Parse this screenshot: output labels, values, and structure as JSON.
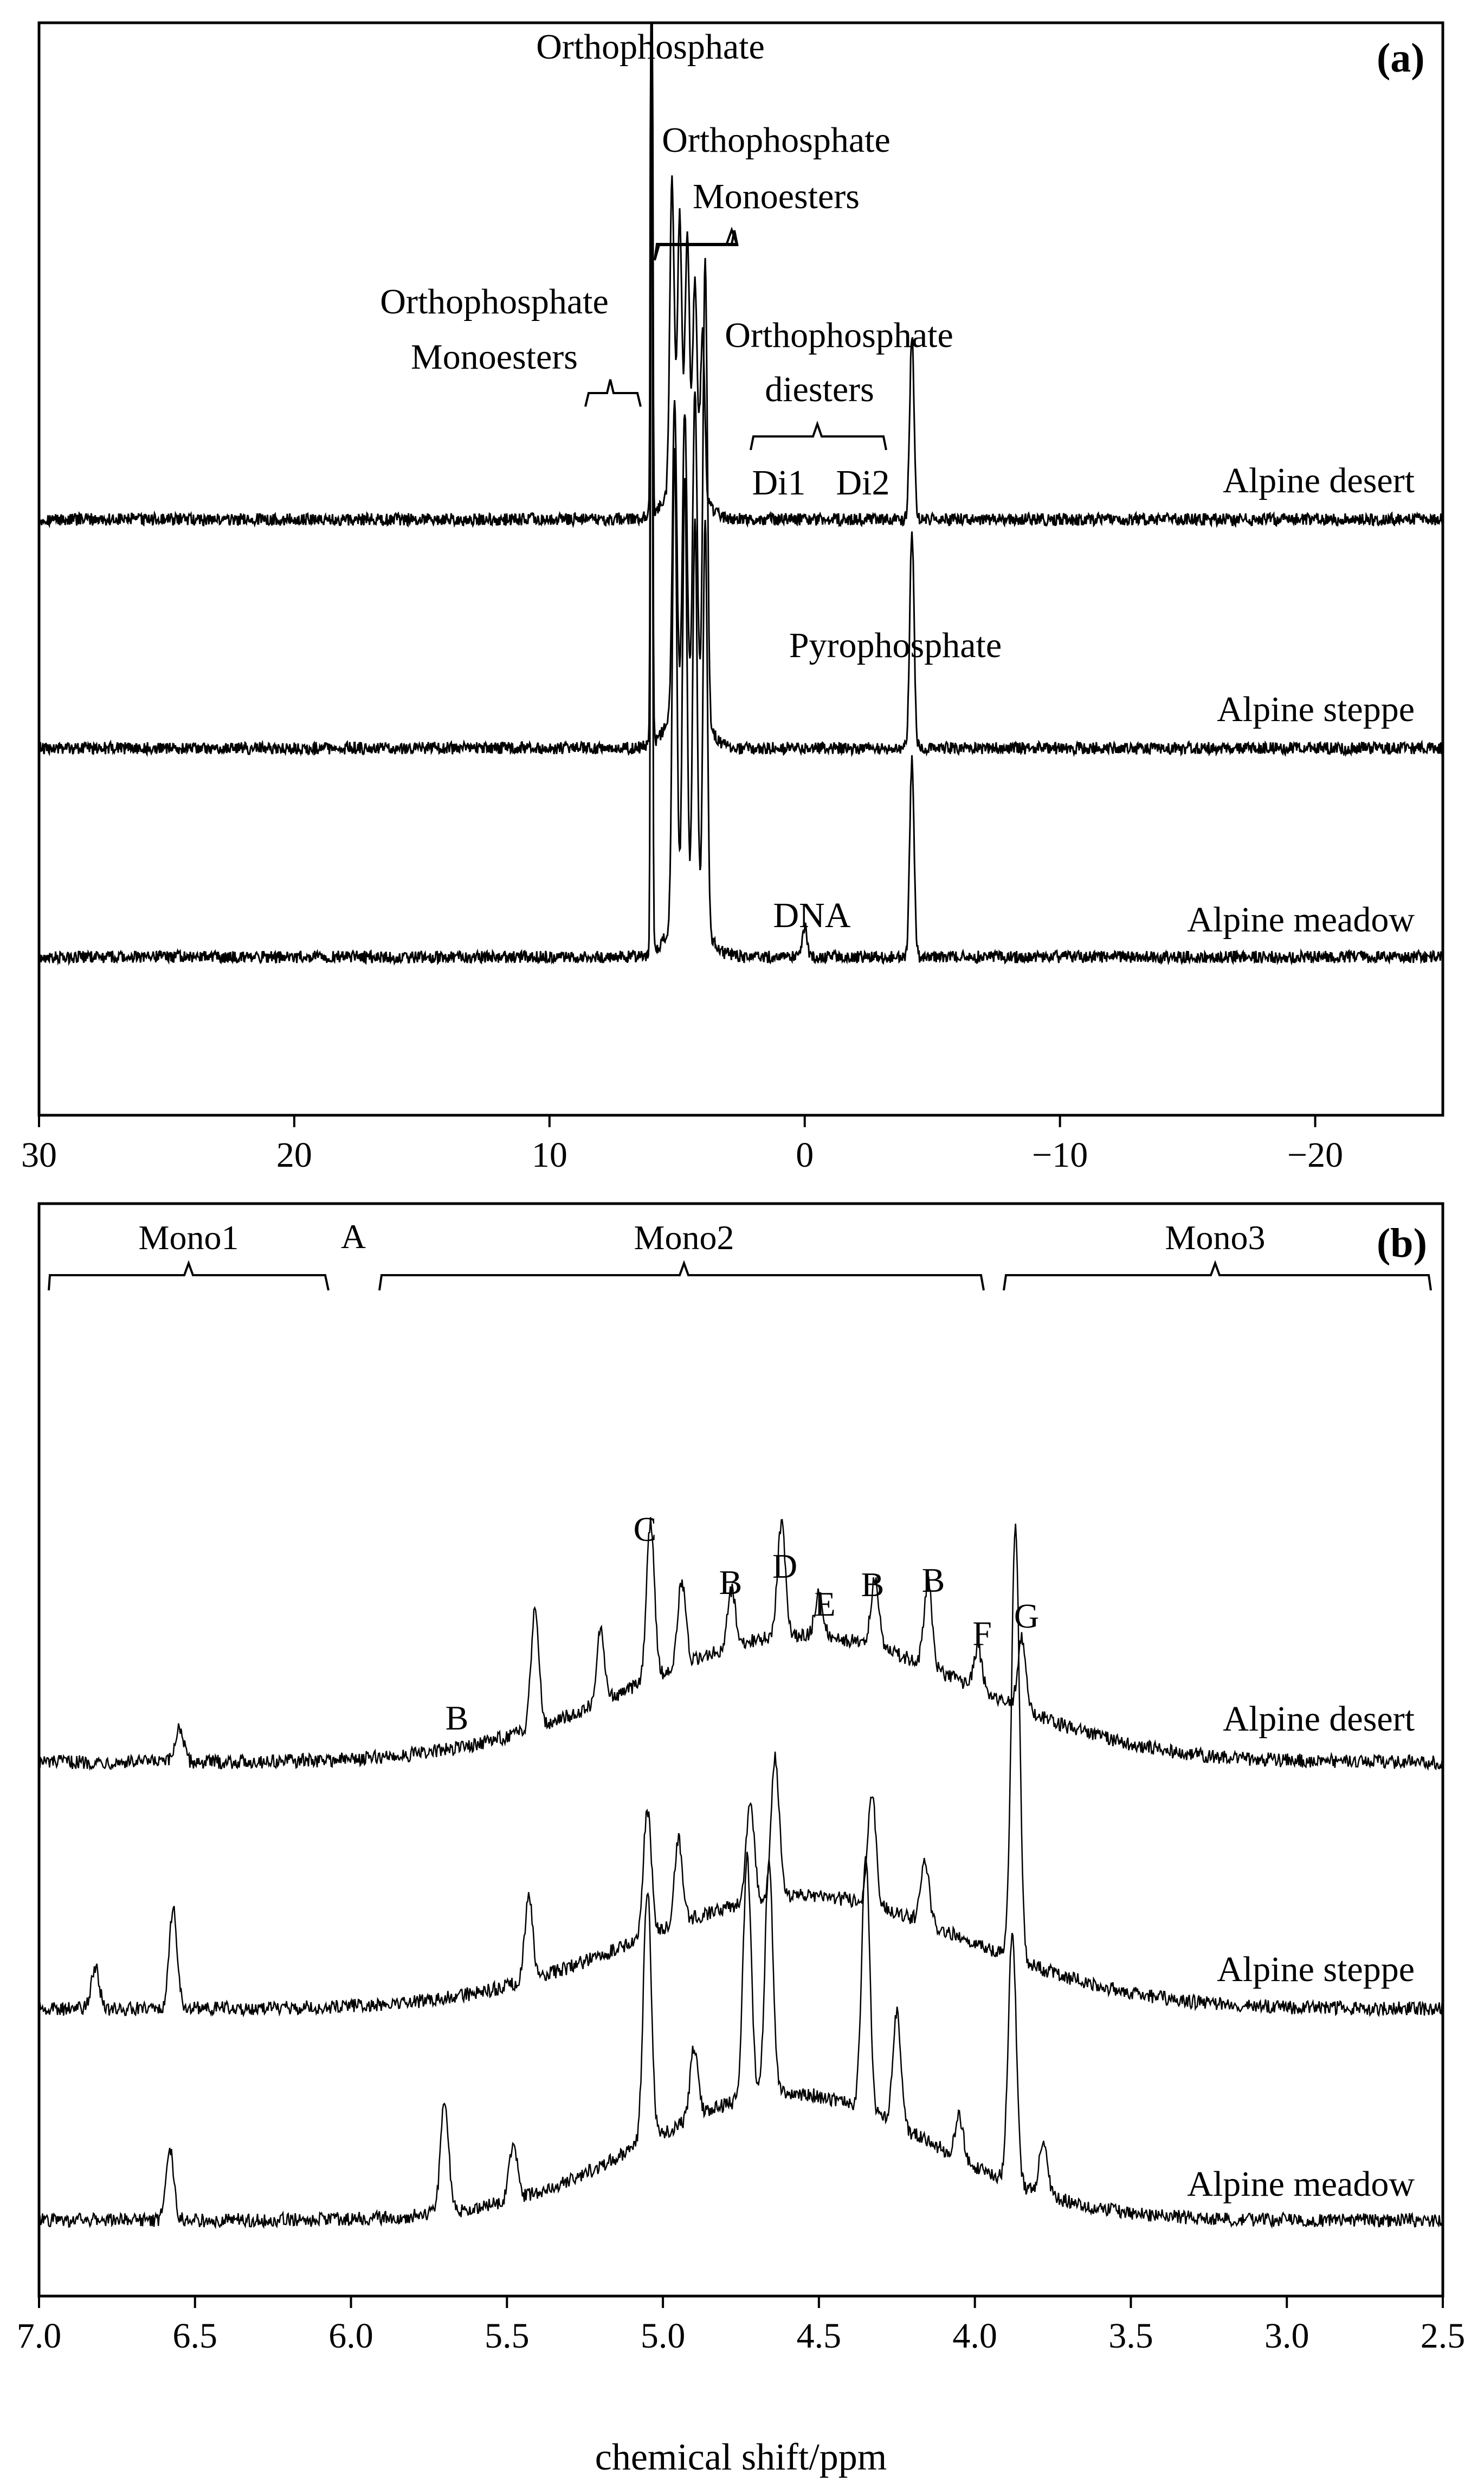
{
  "chart_data": [
    {
      "panel": "(a)",
      "type": "line",
      "xlim": [
        30,
        -25
      ],
      "x_ticks": [
        30,
        20,
        10,
        0,
        -10,
        -20
      ],
      "x_tick_labels": [
        "30",
        "20",
        "10",
        "0",
        "−10",
        "−20"
      ],
      "xlabel": "",
      "ylabel": "",
      "grid": false,
      "series": [
        {
          "name": "Alpine desert",
          "peaks": [
            {
              "x": 6.0,
              "h": 1.0
            },
            {
              "x": 5.2,
              "h": 0.3
            },
            {
              "x": 4.9,
              "h": 0.26
            },
            {
              "x": 4.6,
              "h": 0.24
            },
            {
              "x": 4.3,
              "h": 0.2
            },
            {
              "x": 4.0,
              "h": 0.16
            },
            {
              "x": -4.2,
              "h": 0.18
            }
          ]
        },
        {
          "name": "Alpine steppe",
          "peaks": [
            {
              "x": 6.0,
              "h": 1.0
            },
            {
              "x": 5.1,
              "h": 0.3
            },
            {
              "x": 4.7,
              "h": 0.28
            },
            {
              "x": 4.3,
              "h": 0.3
            },
            {
              "x": 3.9,
              "h": 0.45
            },
            {
              "x": -4.2,
              "h": 0.21
            }
          ]
        },
        {
          "name": "Alpine meadow",
          "peaks": [
            {
              "x": 6.0,
              "h": 1.0
            },
            {
              "x": 5.1,
              "h": 0.46
            },
            {
              "x": 4.7,
              "h": 0.42
            },
            {
              "x": 4.3,
              "h": 0.38
            },
            {
              "x": 3.9,
              "h": 0.4
            },
            {
              "x": 0.0,
              "h": 0.03
            },
            {
              "x": -4.2,
              "h": 0.19
            }
          ]
        }
      ],
      "annotations": {
        "orthophosphate": "Orthophosphate",
        "ortho_mono_right_1": "Orthophosphate",
        "ortho_mono_right_2": "Monoesters",
        "ortho_mono_left_1": "Orthophosphate",
        "ortho_mono_left_2": "Monoesters",
        "ortho_di_1": "Orthophosphate",
        "ortho_di_2": "diesters",
        "di1": "Di1",
        "di2": "Di2",
        "pyrophosphate": "Pyrophosphate",
        "dna": "DNA"
      }
    },
    {
      "panel": "(b)",
      "type": "line",
      "xlim": [
        7.0,
        2.5
      ],
      "x_ticks": [
        7.0,
        6.5,
        6.0,
        5.5,
        5.0,
        4.5,
        4.0,
        3.5,
        3.0,
        2.5
      ],
      "x_tick_labels": [
        "7.0",
        "6.5",
        "6.0",
        "5.5",
        "5.0",
        "4.5",
        "4.0",
        "3.5",
        "3.0",
        "2.5"
      ],
      "xlabel": "chemical shift/ppm",
      "ylabel": "",
      "grid": false,
      "series": [
        {
          "name": "Alpine desert",
          "peaks": [
            {
              "x": 6.55,
              "h": 0.05
            },
            {
              "x": 5.41,
              "h": 0.17
            },
            {
              "x": 5.2,
              "h": 0.1
            },
            {
              "x": 5.04,
              "h": 0.22
            },
            {
              "x": 4.94,
              "h": 0.12
            },
            {
              "x": 4.78,
              "h": 0.08
            },
            {
              "x": 4.62,
              "h": 0.16
            },
            {
              "x": 4.5,
              "h": 0.06
            },
            {
              "x": 4.32,
              "h": 0.1
            },
            {
              "x": 4.15,
              "h": 0.12
            },
            {
              "x": 3.99,
              "h": 0.06
            },
            {
              "x": 3.85,
              "h": 0.1
            }
          ]
        },
        {
          "name": "Alpine steppe",
          "peaks": [
            {
              "x": 6.82,
              "h": 0.06
            },
            {
              "x": 6.57,
              "h": 0.14
            },
            {
              "x": 5.43,
              "h": 0.12
            },
            {
              "x": 5.05,
              "h": 0.18
            },
            {
              "x": 4.95,
              "h": 0.12
            },
            {
              "x": 4.72,
              "h": 0.14
            },
            {
              "x": 4.64,
              "h": 0.2
            },
            {
              "x": 4.33,
              "h": 0.16
            },
            {
              "x": 4.16,
              "h": 0.09
            },
            {
              "x": 3.87,
              "h": 0.62
            }
          ]
        },
        {
          "name": "Alpine meadow",
          "peaks": [
            {
              "x": 6.58,
              "h": 0.1
            },
            {
              "x": 5.7,
              "h": 0.16
            },
            {
              "x": 5.48,
              "h": 0.08
            },
            {
              "x": 5.05,
              "h": 0.36
            },
            {
              "x": 4.9,
              "h": 0.1
            },
            {
              "x": 4.73,
              "h": 0.34
            },
            {
              "x": 4.66,
              "h": 0.33
            },
            {
              "x": 4.35,
              "h": 0.36
            },
            {
              "x": 4.25,
              "h": 0.16
            },
            {
              "x": 4.05,
              "h": 0.06
            },
            {
              "x": 3.88,
              "h": 0.36
            },
            {
              "x": 3.78,
              "h": 0.08
            }
          ]
        }
      ],
      "regions": [
        "Mono1",
        "A",
        "Mono2",
        "Mono3"
      ],
      "peak_letters": [
        "B",
        "C",
        "B",
        "D",
        "E",
        "B",
        "B",
        "F",
        "G"
      ]
    }
  ]
}
